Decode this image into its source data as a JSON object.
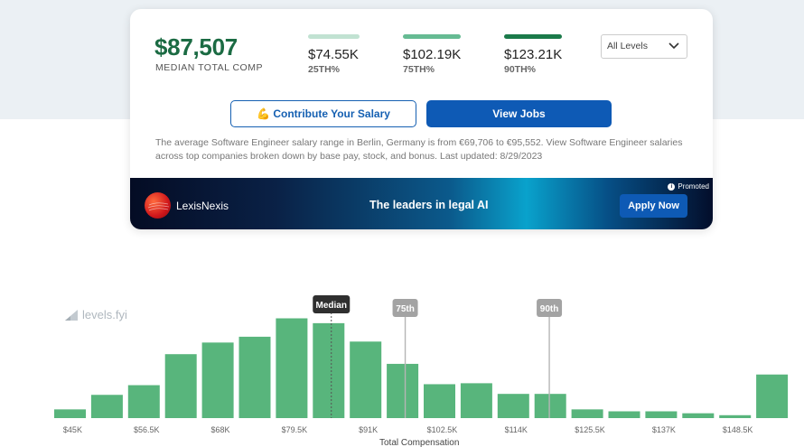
{
  "summary": {
    "median_value": "$87,507",
    "median_label": "MEDIAN TOTAL COMP",
    "percentiles": [
      {
        "value": "$74.55K",
        "label": "25TH%"
      },
      {
        "value": "$102.19K",
        "label": "75TH%"
      },
      {
        "value": "$123.21K",
        "label": "90TH%"
      }
    ],
    "level_select": "All Levels"
  },
  "actions": {
    "contribute_label": "💪 Contribute Your Salary",
    "view_jobs_label": "View Jobs"
  },
  "description": "The average Software Engineer salary range in Berlin, Germany is from €69,706 to €95,552. View Software Engineer salaries across top companies broken down by base pay, stock, and bonus. Last updated: 8/29/2023",
  "ad": {
    "brand": "LexisNexis",
    "tagline": "The leaders in legal AI",
    "promoted_label": "Promoted",
    "cta_label": "Apply Now"
  },
  "watermark": "levels.fyi",
  "chart_data": {
    "type": "bar",
    "title": "",
    "xlabel": "Total Compensation",
    "ylabel": "",
    "bar_color": "#58b57c",
    "x_ticks": [
      "$45K",
      "$56.5K",
      "$68K",
      "$79.5K",
      "$91K",
      "$102.5K",
      "$114K",
      "$125.5K",
      "$137K",
      "$148.5K"
    ],
    "bin_count": 20,
    "values": [
      9,
      24,
      34,
      66,
      78,
      84,
      103,
      98,
      79,
      56,
      35,
      36,
      25,
      25,
      9,
      7,
      7,
      5,
      3,
      45
    ],
    "ylim": [
      0,
      110
    ],
    "markers": [
      {
        "label": "Median",
        "bin_position": 7.5
      },
      {
        "label": "75th",
        "bin_position": 9.5
      },
      {
        "label": "90th",
        "bin_position": 13.4
      }
    ]
  }
}
